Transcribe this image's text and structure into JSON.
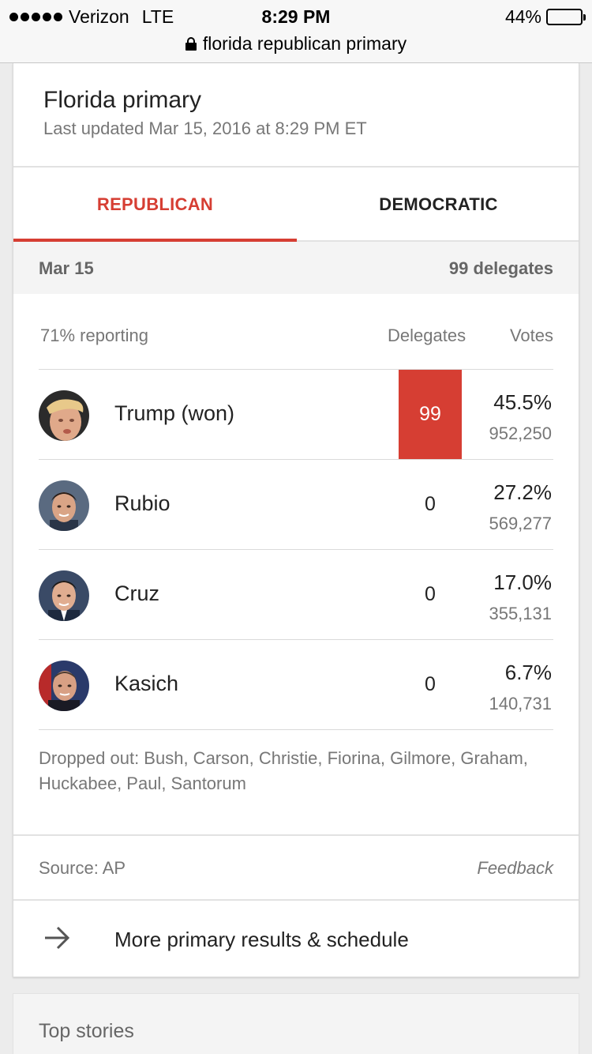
{
  "status_bar": {
    "carrier": "Verizon",
    "network": "LTE",
    "time": "8:29 PM",
    "battery_percent": "44%",
    "battery_level": 0.44
  },
  "url_bar": {
    "query": "florida republican primary",
    "icon": "lock-icon"
  },
  "card": {
    "title": "Florida primary",
    "last_updated": "Last updated Mar 15, 2016 at 8:29 PM ET",
    "tabs": [
      {
        "label": "REPUBLICAN",
        "active": true
      },
      {
        "label": "DEMOCRATIC",
        "active": false
      }
    ],
    "date": "Mar 15",
    "delegates_total": "99 delegates",
    "reporting": "71% reporting",
    "col_delegates": "Delegates",
    "col_votes": "Votes",
    "candidates": [
      {
        "name": "Trump (won)",
        "delegates": "99",
        "percent": "45.5%",
        "votes": "952,250",
        "won": true
      },
      {
        "name": "Rubio",
        "delegates": "0",
        "percent": "27.2%",
        "votes": "569,277",
        "won": false
      },
      {
        "name": "Cruz",
        "delegates": "0",
        "percent": "17.0%",
        "votes": "355,131",
        "won": false
      },
      {
        "name": "Kasich",
        "delegates": "0",
        "percent": "6.7%",
        "votes": "140,731",
        "won": false
      }
    ],
    "dropped_out": "Dropped out: Bush, Carson, Christie, Fiorina, Gilmore, Graham, Huckabee, Paul, Santorum",
    "source": "Source: AP",
    "feedback": "Feedback",
    "more_link": "More primary results & schedule"
  },
  "top_stories": {
    "label": "Top stories"
  },
  "colors": {
    "accent_red": "#d63e33",
    "text_primary": "#222222",
    "text_secondary": "#777777",
    "band_bg": "#f4f4f4"
  }
}
